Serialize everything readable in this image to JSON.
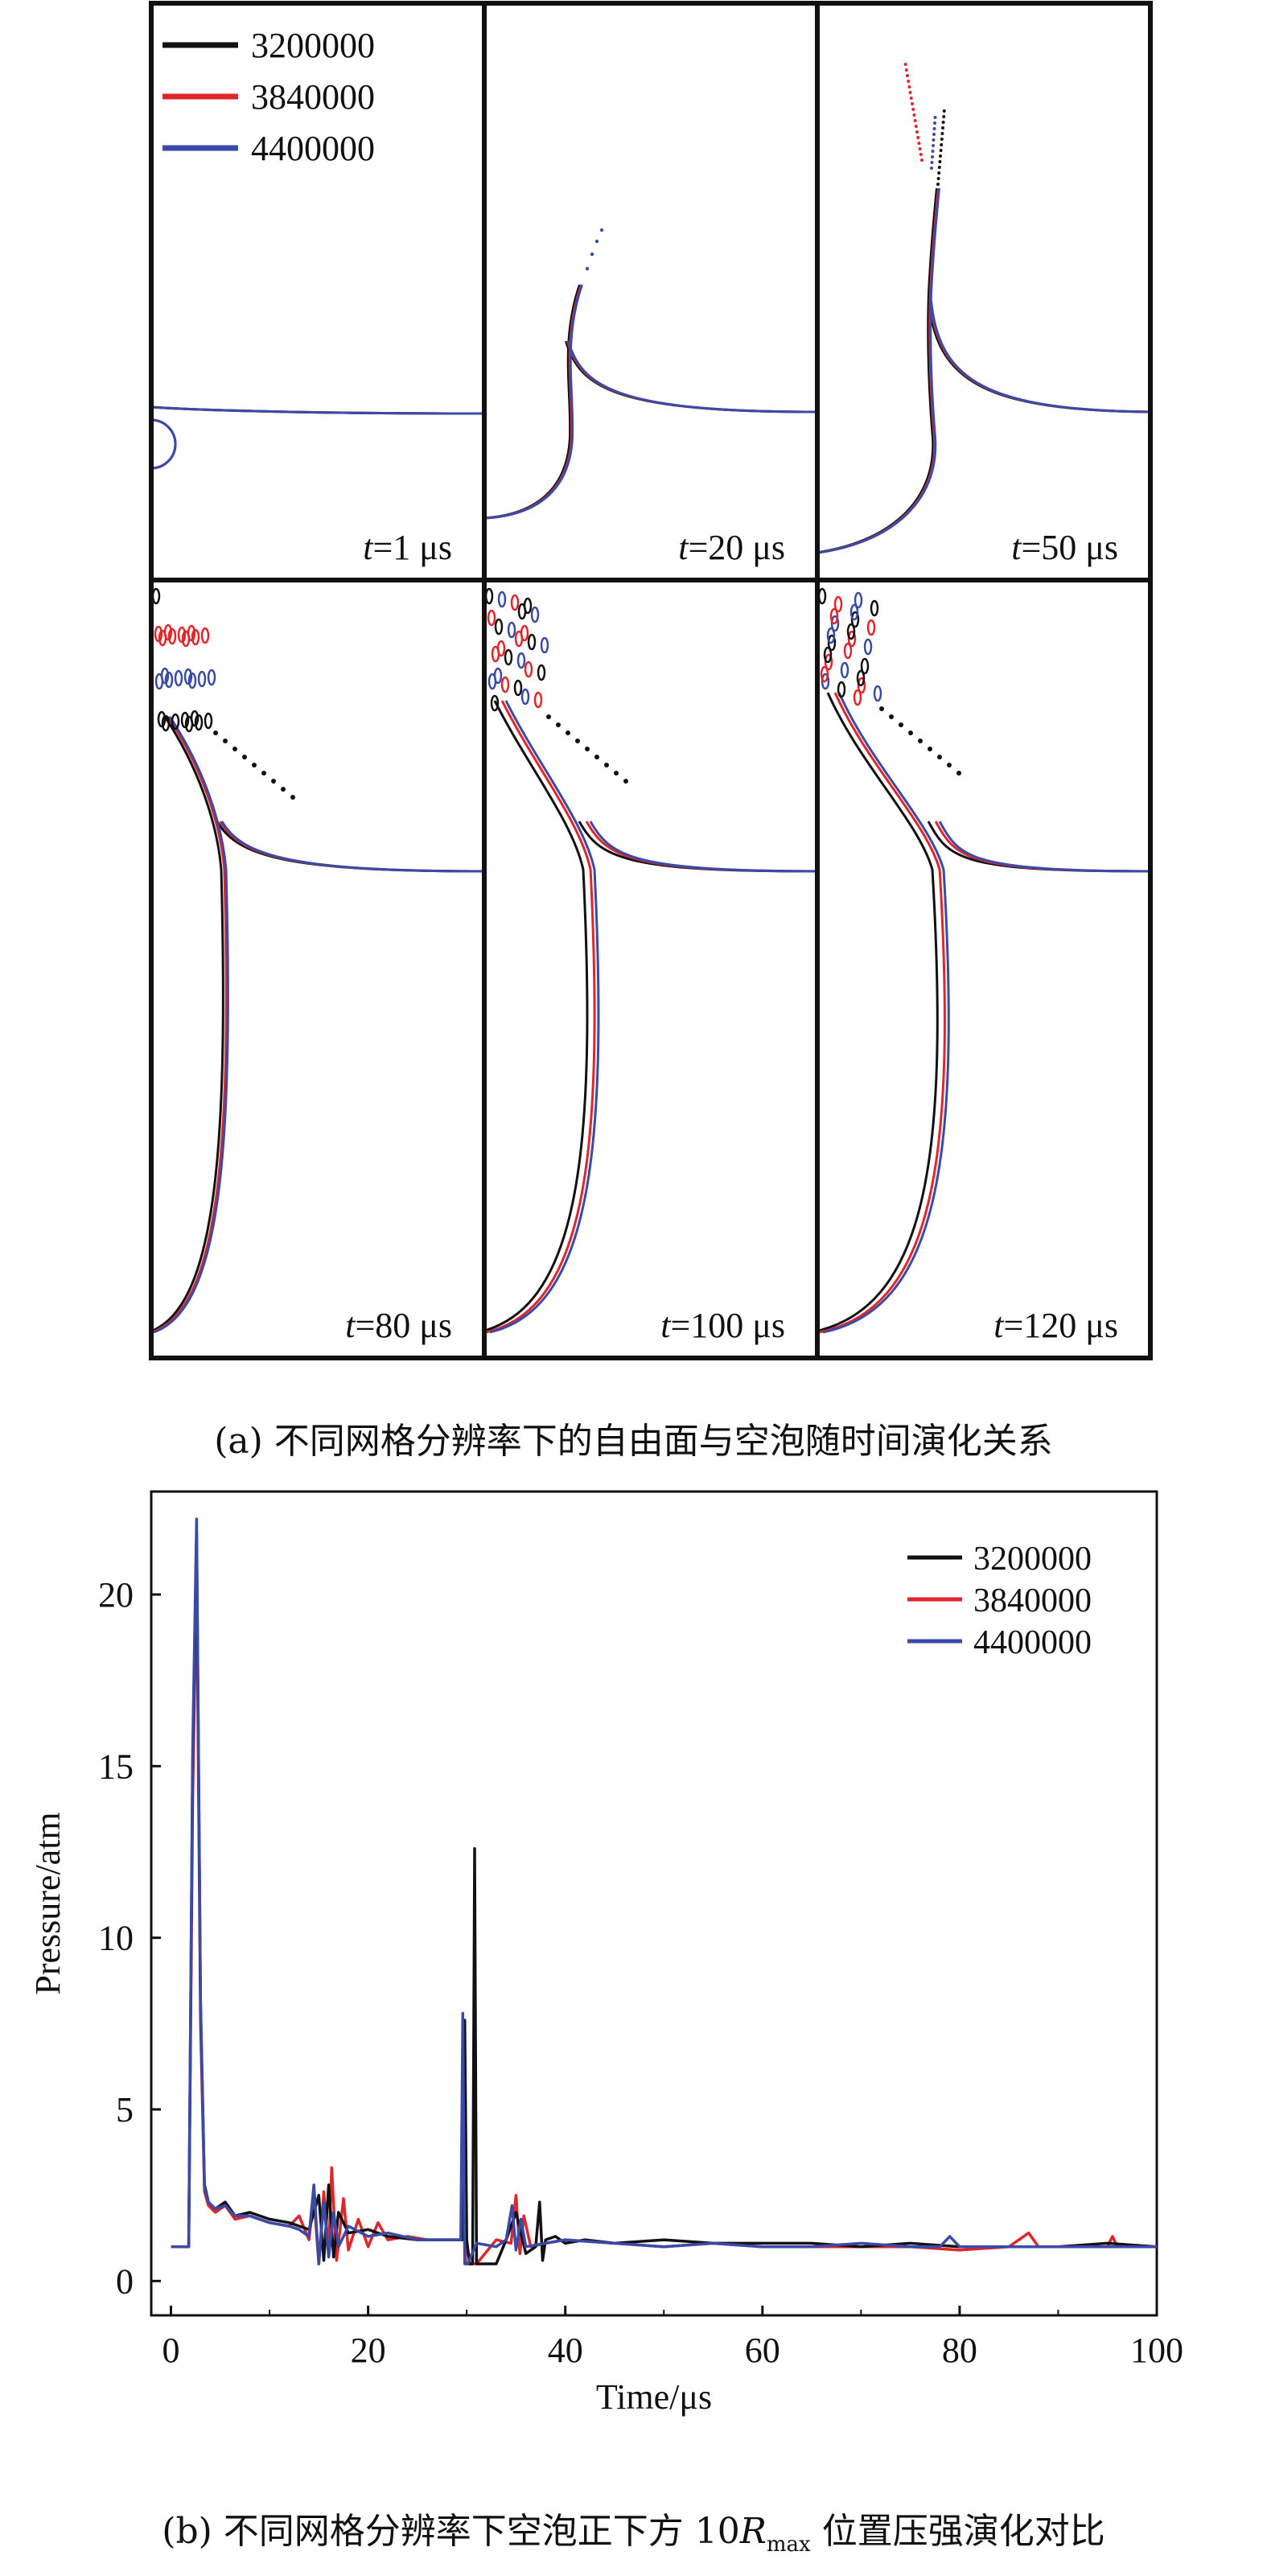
{
  "colors": {
    "s1": "#111111",
    "s2": "#e0262b",
    "s3": "#3a4aa8"
  },
  "legend": [
    "3200000",
    "3840000",
    "4400000"
  ],
  "panels": [
    {
      "time_label": "t=1 μs",
      "t_italic": "t",
      "t_rest": "=1 μs",
      "stage": 0
    },
    {
      "time_label": "t=20 μs",
      "t_italic": "t",
      "t_rest": "=20 μs",
      "stage": 1
    },
    {
      "time_label": "t=50 μs",
      "t_italic": "t",
      "t_rest": "=50 μs",
      "stage": 2
    },
    {
      "time_label": "t=80 μs",
      "t_italic": "t",
      "t_rest": "=80 μs",
      "stage": 3
    },
    {
      "time_label": "t=100 μs",
      "t_italic": "t",
      "t_rest": "=100 μs",
      "stage": 4
    },
    {
      "time_label": "t=120 μs",
      "t_italic": "t",
      "t_rest": "=120 μs",
      "stage": 5
    }
  ],
  "caption_a": "(a) 不同网格分辨率下的自由面与空泡随时间演化关系",
  "caption_b": {
    "prefix": "(b) 不同网格分辨率下空泡正下方 10",
    "R": "R",
    "sub": "max",
    "suffix": " 位置压强演化对比"
  },
  "chart_data": {
    "type": "line",
    "xlabel": "Time/μs",
    "ylabel": "Pressure/atm",
    "xlim": [
      -2,
      100
    ],
    "ylim": [
      -1,
      23
    ],
    "xticks": [
      0,
      20,
      40,
      60,
      80,
      100
    ],
    "yticks": [
      0,
      5,
      10,
      15,
      20
    ],
    "legend_position": "top-right",
    "series": [
      {
        "name": "3200000",
        "color": "#111111",
        "x": [
          0,
          1.8,
          2.2,
          2.6,
          3.0,
          3.4,
          3.8,
          4.5,
          5.5,
          6.5,
          8,
          10,
          12,
          14,
          15,
          15.5,
          16,
          16.5,
          17,
          18,
          20,
          22,
          25,
          28,
          29.6,
          29.8,
          30.0,
          30.3,
          30.6,
          30.8,
          31.0,
          31.2,
          31.6,
          33,
          34,
          35,
          36,
          37,
          37.4,
          37.7,
          38,
          39,
          40,
          42,
          45,
          50,
          55,
          60,
          65,
          70,
          75,
          80,
          85,
          90,
          95,
          100
        ],
        "y": [
          1.0,
          1.0,
          15.0,
          21.8,
          8.0,
          2.8,
          2.3,
          2.1,
          2.3,
          1.9,
          2.0,
          1.8,
          1.7,
          1.5,
          2.5,
          0.6,
          2.8,
          0.7,
          2.0,
          1.4,
          1.5,
          1.3,
          1.2,
          1.2,
          1.2,
          7.6,
          1.2,
          0.5,
          0.5,
          12.6,
          0.5,
          0.5,
          0.5,
          0.5,
          1.2,
          2.0,
          0.8,
          1.0,
          2.3,
          0.6,
          1.2,
          1.3,
          1.1,
          1.2,
          1.1,
          1.2,
          1.1,
          1.1,
          1.1,
          1.0,
          1.1,
          1.0,
          1.0,
          1.0,
          1.1,
          1.0
        ]
      },
      {
        "name": "3840000",
        "color": "#e0262b",
        "x": [
          0,
          1.8,
          2.2,
          2.6,
          3.0,
          3.4,
          3.8,
          4.5,
          5.5,
          6.5,
          8,
          10,
          12,
          13,
          14,
          14.5,
          15,
          15.5,
          16,
          16.3,
          16.8,
          17.5,
          18,
          19,
          20,
          21,
          22,
          24,
          26,
          29.5,
          29.7,
          29.9,
          30.2,
          31,
          33,
          34.5,
          35,
          35.4,
          35.8,
          36.5,
          38,
          40,
          45,
          50,
          55,
          60,
          65,
          70,
          75,
          80,
          85,
          87,
          88,
          90,
          95,
          95.5,
          96,
          100
        ],
        "y": [
          1.0,
          1.0,
          14.0,
          20.8,
          7.5,
          2.6,
          2.2,
          2.0,
          2.2,
          1.8,
          1.9,
          1.7,
          1.6,
          1.9,
          1.2,
          2.4,
          0.5,
          2.6,
          0.8,
          3.3,
          0.6,
          2.4,
          0.9,
          1.8,
          1.0,
          1.7,
          1.2,
          1.3,
          1.2,
          1.2,
          7.3,
          0.5,
          0.5,
          0.5,
          1.2,
          1.1,
          2.5,
          0.8,
          1.9,
          1.0,
          1.1,
          1.2,
          1.1,
          1.0,
          1.1,
          1.0,
          1.0,
          1.0,
          1.0,
          0.9,
          1.0,
          1.4,
          1.0,
          1.0,
          1.0,
          1.3,
          1.0,
          1.0
        ]
      },
      {
        "name": "4400000",
        "color": "#3a4aa8",
        "x": [
          0,
          1.8,
          2.2,
          2.6,
          3.0,
          3.4,
          3.8,
          4.5,
          5.5,
          6.5,
          8,
          10,
          12,
          13,
          14,
          14.5,
          15,
          15.5,
          16,
          16.5,
          17,
          18,
          20,
          22,
          25,
          28,
          29.4,
          29.6,
          29.8,
          30.1,
          31,
          33,
          34,
          34.6,
          35,
          35.5,
          36,
          38,
          40,
          45,
          50,
          55,
          60,
          65,
          70,
          75,
          78,
          79,
          80,
          85,
          90,
          95,
          100
        ],
        "y": [
          1.0,
          1.0,
          15.5,
          22.2,
          8.2,
          2.7,
          2.3,
          2.1,
          2.2,
          1.9,
          1.9,
          1.7,
          1.6,
          1.5,
          1.3,
          2.8,
          0.5,
          2.3,
          0.7,
          2.0,
          1.0,
          1.6,
          1.3,
          1.4,
          1.2,
          1.2,
          1.2,
          7.8,
          0.5,
          0.5,
          1.1,
          1.0,
          1.2,
          2.2,
          0.9,
          1.8,
          1.0,
          1.1,
          1.2,
          1.1,
          1.0,
          1.1,
          1.0,
          1.0,
          1.1,
          1.0,
          1.0,
          1.3,
          1.0,
          1.0,
          1.0,
          1.0,
          1.0
        ]
      }
    ]
  }
}
